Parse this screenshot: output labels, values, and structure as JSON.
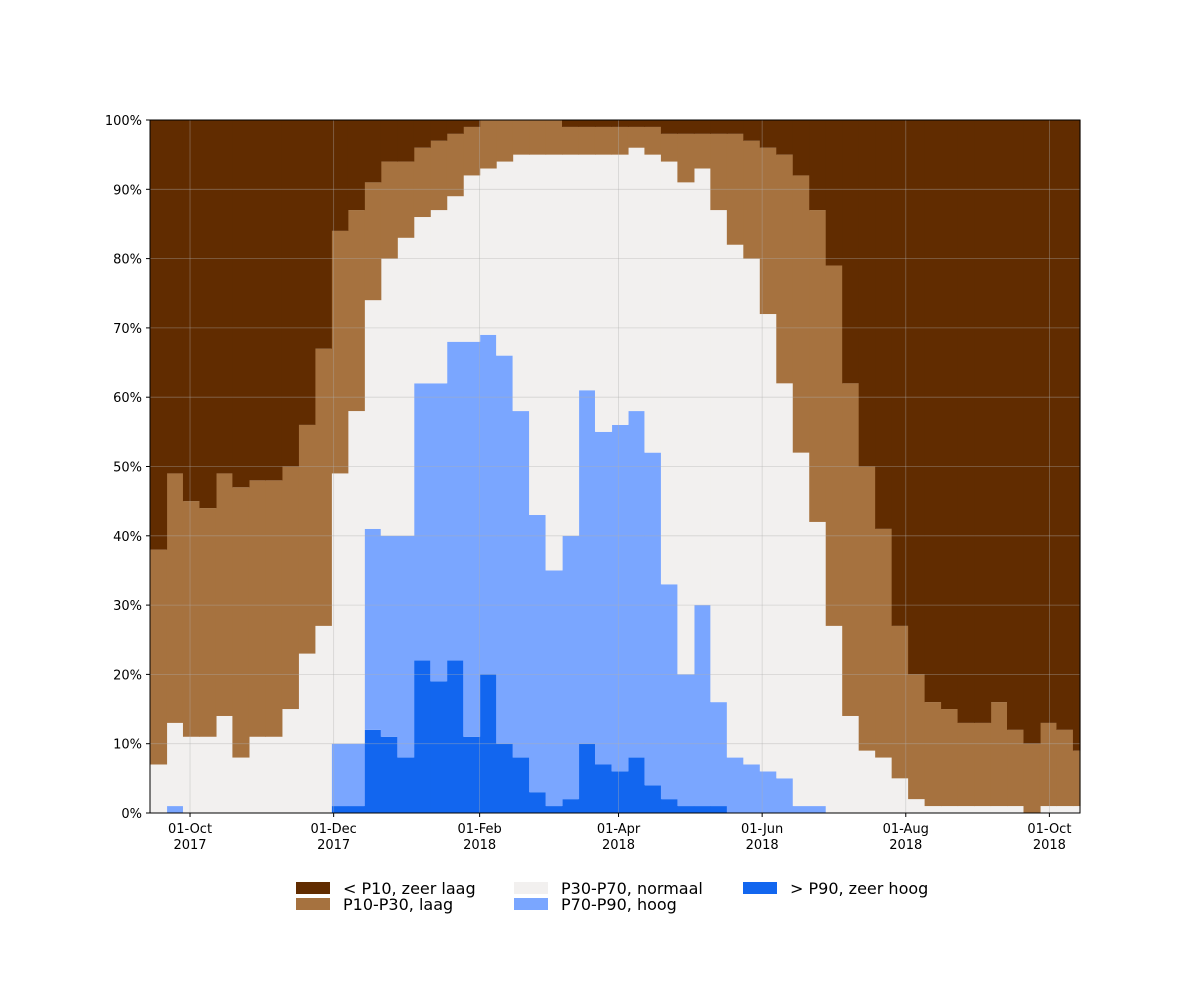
{
  "chart_data": {
    "type": "stacked_area",
    "x": [
      "2017-09-14",
      "2017-09-21",
      "2017-09-28",
      "2017-10-05",
      "2017-10-12",
      "2017-10-19",
      "2017-10-26",
      "2017-11-02",
      "2017-11-09",
      "2017-11-16",
      "2017-11-23",
      "2017-11-30",
      "2017-12-07",
      "2017-12-14",
      "2017-12-21",
      "2017-12-28",
      "2018-01-04",
      "2018-01-11",
      "2018-01-18",
      "2018-01-25",
      "2018-02-01",
      "2018-02-08",
      "2018-02-15",
      "2018-02-22",
      "2018-03-01",
      "2018-03-08",
      "2018-03-15",
      "2018-03-22",
      "2018-03-29",
      "2018-04-05",
      "2018-04-12",
      "2018-04-19",
      "2018-04-26",
      "2018-05-03",
      "2018-05-10",
      "2018-05-17",
      "2018-05-24",
      "2018-05-31",
      "2018-06-07",
      "2018-06-14",
      "2018-06-21",
      "2018-06-28",
      "2018-07-05",
      "2018-07-12",
      "2018-07-19",
      "2018-07-26",
      "2018-08-02",
      "2018-08-09",
      "2018-08-16",
      "2018-08-23",
      "2018-08-30",
      "2018-09-06",
      "2018-09-13",
      "2018-09-20",
      "2018-09-27",
      "2018-10-04",
      "2018-10-11"
    ],
    "series": [
      {
        "name": "> P90, zeer hoog",
        "color": "#1266ef",
        "values": [
          0,
          0,
          0,
          0,
          0,
          0,
          0,
          0,
          0,
          0,
          0,
          1,
          1,
          12,
          11,
          8,
          22,
          19,
          22,
          11,
          20,
          10,
          8,
          3,
          1,
          2,
          10,
          7,
          6,
          8,
          4,
          2,
          1,
          1,
          1,
          0,
          0,
          0,
          0,
          0,
          0,
          0,
          0,
          0,
          0,
          0,
          0,
          0,
          0,
          0,
          0,
          0,
          0,
          0,
          0,
          0,
          0
        ]
      },
      {
        "name": "P70-P90, hoog",
        "color": "#7aa6ff",
        "values": [
          0,
          1,
          0,
          0,
          0,
          0,
          0,
          0,
          0,
          0,
          0,
          9,
          9,
          29,
          29,
          32,
          40,
          43,
          46,
          57,
          49,
          56,
          50,
          40,
          34,
          38,
          51,
          48,
          50,
          50,
          48,
          31,
          19,
          29,
          15,
          8,
          7,
          6,
          5,
          1,
          1,
          0,
          0,
          0,
          0,
          0,
          0,
          0,
          0,
          0,
          0,
          0,
          0,
          0,
          0,
          0,
          0
        ]
      },
      {
        "name": "P30-P70, normaal",
        "color": "#f2f0ef",
        "values": [
          7,
          12,
          11,
          11,
          14,
          8,
          11,
          11,
          15,
          23,
          27,
          39,
          48,
          33,
          40,
          43,
          24,
          25,
          21,
          24,
          24,
          28,
          37,
          52,
          60,
          55,
          34,
          40,
          39,
          38,
          43,
          61,
          71,
          63,
          71,
          74,
          73,
          66,
          57,
          51,
          41,
          27,
          14,
          9,
          8,
          5,
          2,
          1,
          1,
          1,
          1,
          1,
          1,
          0,
          1,
          1,
          1
        ]
      },
      {
        "name": "P10-P30, laag",
        "color": "#a6723f",
        "values": [
          31,
          36,
          34,
          33,
          35,
          39,
          37,
          37,
          35,
          33,
          40,
          35,
          29,
          17,
          14,
          11,
          10,
          10,
          9,
          7,
          7,
          6,
          5,
          5,
          5,
          4,
          4,
          4,
          4,
          3,
          4,
          4,
          7,
          5,
          11,
          16,
          17,
          24,
          33,
          40,
          45,
          52,
          48,
          41,
          33,
          22,
          18,
          15,
          14,
          12,
          12,
          15,
          11,
          10,
          12,
          11,
          8
        ]
      },
      {
        "name": "< P10, zeer laag",
        "color": "#612c00",
        "values": [
          62,
          51,
          55,
          56,
          51,
          53,
          52,
          52,
          50,
          44,
          33,
          16,
          13,
          9,
          6,
          6,
          4,
          3,
          2,
          1,
          0,
          0,
          0,
          0,
          0,
          1,
          1,
          1,
          1,
          1,
          1,
          2,
          2,
          2,
          2,
          2,
          3,
          4,
          5,
          8,
          13,
          21,
          38,
          50,
          59,
          73,
          80,
          84,
          85,
          87,
          87,
          84,
          88,
          90,
          87,
          88,
          91
        ]
      }
    ],
    "xlim": [
      "2017-09-14",
      "2018-10-14"
    ],
    "xticks": [
      {
        "value": "2017-10-01",
        "label": "01-Oct 2017"
      },
      {
        "value": "2017-12-01",
        "label": "01-Dec 2017"
      },
      {
        "value": "2018-02-01",
        "label": "01-Feb 2018"
      },
      {
        "value": "2018-04-01",
        "label": "01-Apr 2018"
      },
      {
        "value": "2018-06-01",
        "label": "01-Jun 2018"
      },
      {
        "value": "2018-08-01",
        "label": "01-Aug 2018"
      },
      {
        "value": "2018-10-01",
        "label": "01-Oct 2018"
      }
    ],
    "ylim": [
      0,
      100
    ],
    "yticks": [
      {
        "value": 0,
        "label": "0%"
      },
      {
        "value": 10,
        "label": "10%"
      },
      {
        "value": 20,
        "label": "20%"
      },
      {
        "value": 30,
        "label": "30%"
      },
      {
        "value": 40,
        "label": "40%"
      },
      {
        "value": 50,
        "label": "50%"
      },
      {
        "value": 60,
        "label": "60%"
      },
      {
        "value": 70,
        "label": "70%"
      },
      {
        "value": 80,
        "label": "80%"
      },
      {
        "value": 90,
        "label": "90%"
      },
      {
        "value": 100,
        "label": "100%"
      }
    ],
    "grid": true,
    "legend": "bottom"
  }
}
